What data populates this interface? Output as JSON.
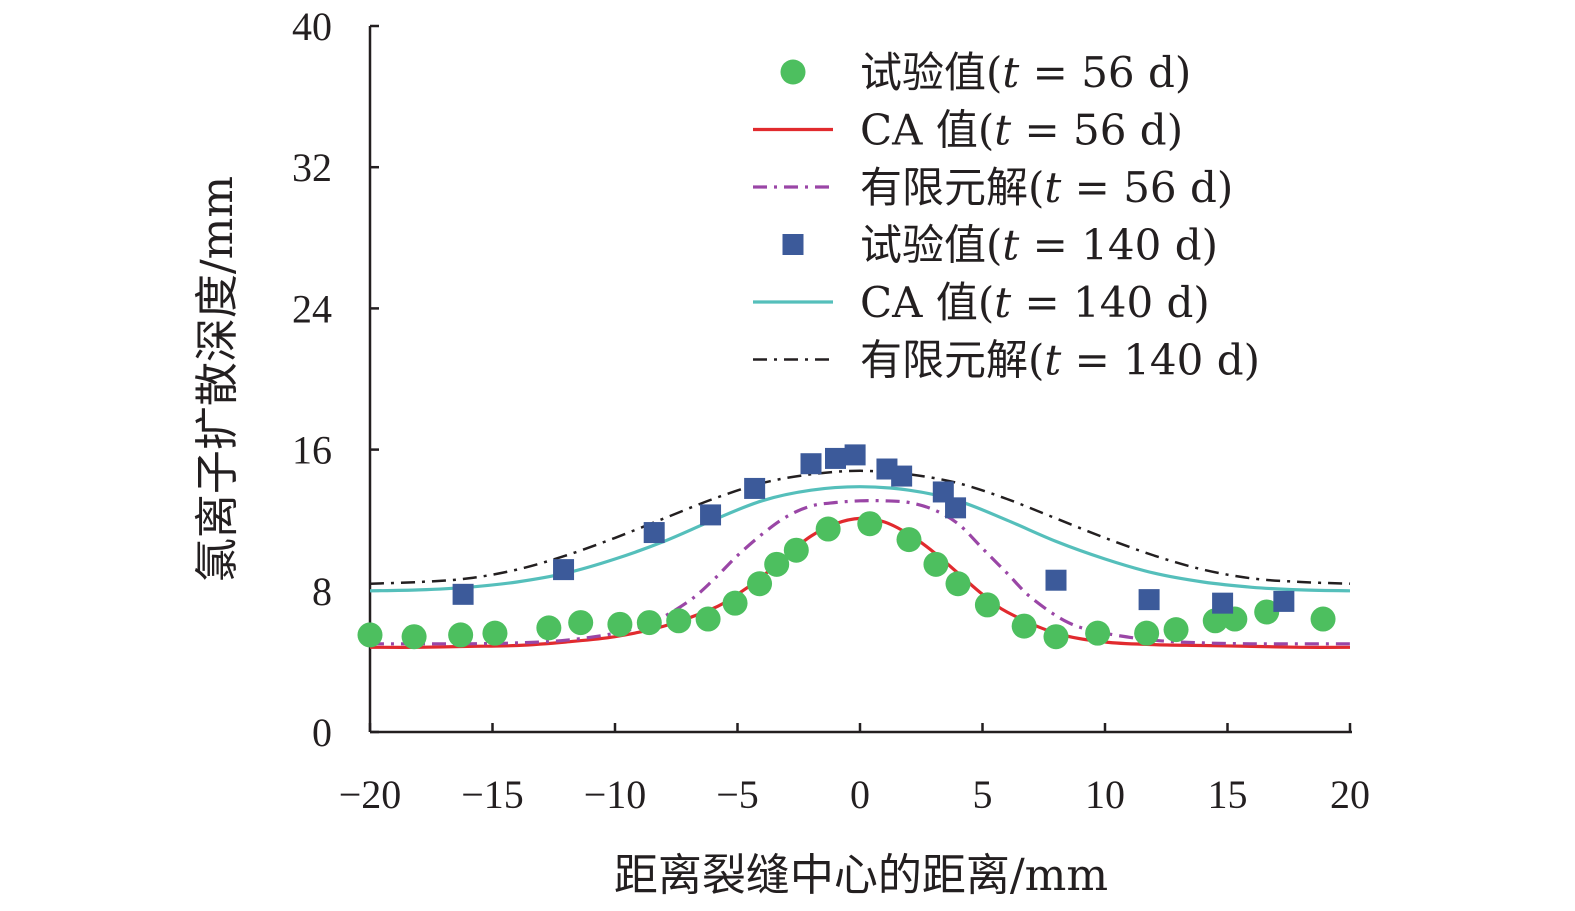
{
  "chart_data": {
    "type": "line",
    "title": "",
    "xlabel": "距离裂缝中心的距离/mm",
    "ylabel": "氯离子扩散深度/mm",
    "xlim": [
      -20,
      20
    ],
    "ylim": [
      0,
      40
    ],
    "xticks": [
      -20,
      -15,
      -10,
      -5,
      0,
      5,
      10,
      15,
      20
    ],
    "xtick_labels": [
      "−20",
      "−15",
      "−10",
      "−5",
      "0",
      "5",
      "10",
      "15",
      "20"
    ],
    "yticks": [
      0,
      8,
      16,
      24,
      32,
      40
    ],
    "ytick_labels": [
      "0",
      "8",
      "16",
      "24",
      "32",
      "40"
    ],
    "grid": false,
    "legend_position": "top-right",
    "series": [
      {
        "name": "试验值(t = 56 d)",
        "legend_prefix": "试验值(",
        "legend_time": "56 d",
        "kind": "scatter",
        "marker": "circle",
        "color": "#4dbf5f",
        "x": [
          -20,
          -18.2,
          -16.3,
          -14.9,
          -12.7,
          -11.4,
          -9.8,
          -8.6,
          -7.4,
          -6.2,
          -5.1,
          -4.1,
          -3.4,
          -2.6,
          -1.3,
          0.4,
          2.0,
          3.1,
          4.0,
          5.2,
          6.7,
          8.0,
          9.7,
          11.7,
          12.9,
          14.5,
          15.3,
          16.6,
          18.9
        ],
        "y": [
          5.5,
          5.4,
          5.5,
          5.6,
          5.9,
          6.2,
          6.1,
          6.2,
          6.3,
          6.4,
          7.3,
          8.4,
          9.5,
          10.3,
          11.5,
          11.8,
          10.9,
          9.5,
          8.4,
          7.2,
          6.0,
          5.4,
          5.6,
          5.6,
          5.8,
          6.3,
          6.4,
          6.8,
          6.4
        ]
      },
      {
        "name": "CA 值(t = 56 d)",
        "legend_prefix": "CA 值(",
        "legend_time": "56 d",
        "kind": "line",
        "style": "solid",
        "color": "#e12a2e",
        "x": [
          -20,
          -18,
          -16,
          -14,
          -12,
          -10,
          -8,
          -6,
          -5,
          -4,
          -3,
          -2,
          -1,
          0,
          1,
          2,
          3,
          4,
          5,
          6,
          8,
          10,
          12,
          14,
          16,
          18,
          20
        ],
        "y": [
          4.8,
          4.8,
          4.85,
          4.9,
          5.1,
          5.4,
          6.0,
          7.0,
          7.8,
          8.8,
          10.0,
          11.1,
          11.8,
          12.1,
          11.9,
          11.2,
          10.2,
          9.0,
          7.8,
          6.8,
          5.6,
          5.1,
          4.95,
          4.9,
          4.85,
          4.8,
          4.8
        ]
      },
      {
        "name": "有限元解(t = 56 d)",
        "legend_prefix": "有限元解(",
        "legend_time": "56 d",
        "kind": "line",
        "style": "dash-dot",
        "color": "#9a46a6",
        "x": [
          -20,
          -18,
          -16,
          -14,
          -12,
          -10,
          -8.5,
          -7,
          -6,
          -5,
          -4,
          -3,
          -2,
          -1,
          0,
          1,
          2,
          3,
          4,
          5,
          6,
          7,
          8.5,
          10,
          12,
          14,
          16,
          18,
          20
        ],
        "y": [
          5.0,
          5.0,
          5.0,
          5.05,
          5.2,
          5.6,
          6.2,
          7.4,
          8.6,
          10.0,
          11.2,
          12.2,
          12.8,
          13.0,
          13.1,
          13.1,
          13.0,
          12.6,
          11.8,
          10.4,
          9.0,
          7.6,
          6.2,
          5.6,
          5.2,
          5.05,
          5.0,
          5.0,
          5.0
        ]
      },
      {
        "name": "试验值(t = 140 d)",
        "legend_prefix": "试验值(",
        "legend_time": "140 d",
        "kind": "scatter",
        "marker": "square",
        "color": "#3c5a9a",
        "x": [
          -16.2,
          -12.1,
          -8.4,
          -6.1,
          -4.3,
          -2.0,
          -1.0,
          -0.2,
          1.1,
          1.7,
          3.4,
          3.9,
          8.0,
          11.8,
          14.8,
          17.3
        ],
        "y": [
          7.8,
          9.2,
          11.3,
          12.3,
          13.8,
          15.2,
          15.5,
          15.7,
          14.9,
          14.5,
          13.6,
          12.7,
          8.6,
          7.5,
          7.3,
          7.4
        ]
      },
      {
        "name": "CA 值(t = 140 d)",
        "legend_prefix": "CA 值(",
        "legend_time": "140 d",
        "kind": "line",
        "style": "solid",
        "color": "#55bfbb",
        "x": [
          -20,
          -18,
          -16,
          -14,
          -12,
          -10,
          -8,
          -6,
          -4,
          -2,
          0,
          2,
          4,
          6,
          8,
          10,
          12,
          14,
          16,
          18,
          20
        ],
        "y": [
          8.0,
          8.05,
          8.2,
          8.5,
          9.0,
          9.8,
          10.8,
          12.0,
          13.1,
          13.7,
          13.9,
          13.7,
          13.1,
          12.0,
          10.8,
          9.8,
          9.0,
          8.5,
          8.2,
          8.05,
          8.0
        ]
      },
      {
        "name": "有限元解(t = 140 d)",
        "legend_prefix": "有限元解(",
        "legend_time": "140 d",
        "kind": "line",
        "style": "dash-dot",
        "color": "#231f20",
        "x": [
          -20,
          -18,
          -16,
          -14,
          -12,
          -10,
          -8,
          -6,
          -4,
          -2,
          0,
          2,
          4,
          6,
          8,
          10,
          12,
          14,
          16,
          18,
          20
        ],
        "y": [
          8.4,
          8.5,
          8.7,
          9.2,
          10.0,
          11.0,
          12.1,
          13.2,
          14.1,
          14.6,
          14.8,
          14.6,
          14.1,
          13.2,
          12.1,
          11.0,
          10.0,
          9.2,
          8.7,
          8.5,
          8.4
        ]
      }
    ]
  }
}
